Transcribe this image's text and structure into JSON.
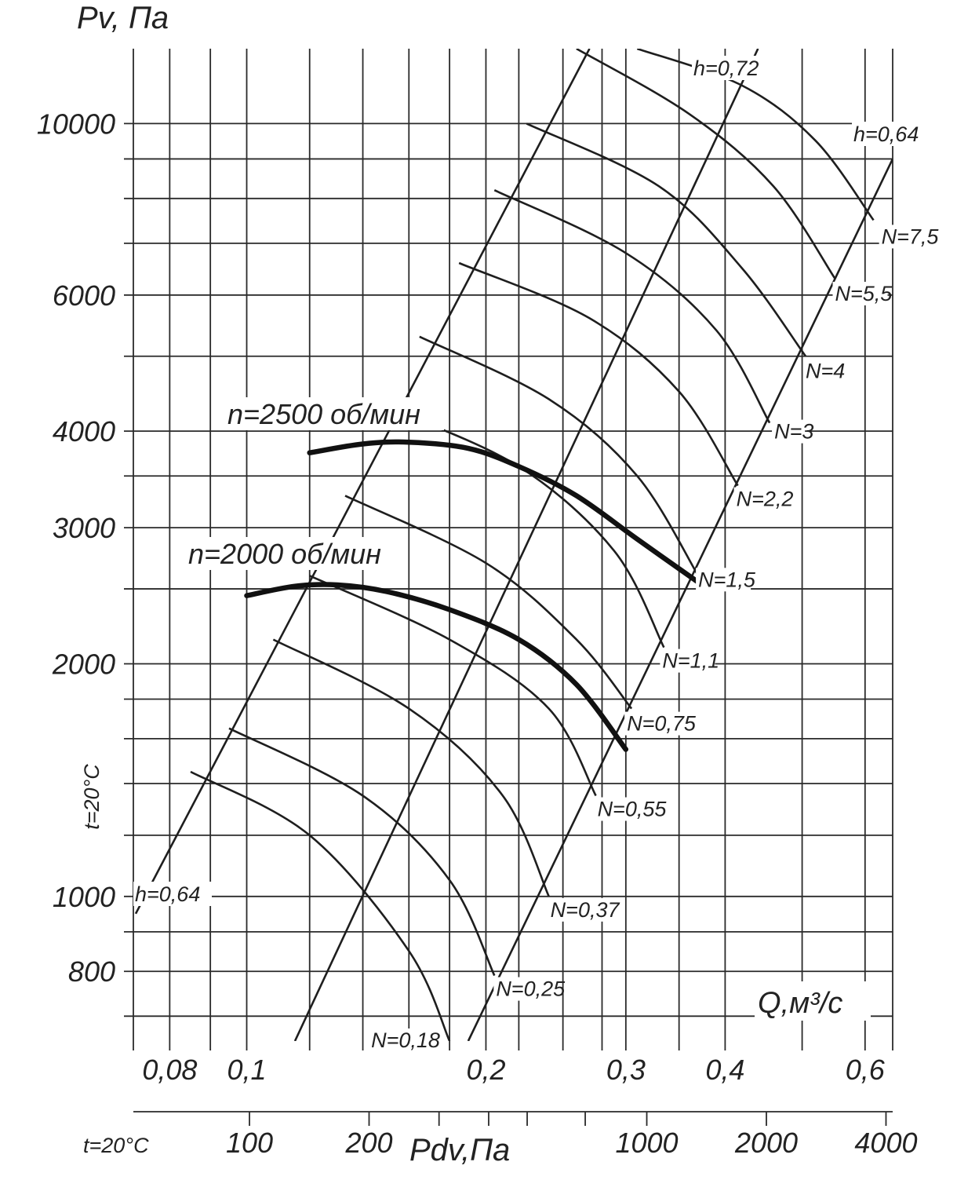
{
  "chart_data": {
    "type": "line",
    "title": "",
    "y_axis": {
      "label": "Pv, Па",
      "scale": "log",
      "range": [
        650,
        12500
      ],
      "tick_labels": [
        {
          "value": 10000,
          "text": "10000"
        },
        {
          "value": 6000,
          "text": "6000"
        },
        {
          "value": 4000,
          "text": "4000"
        },
        {
          "value": 3000,
          "text": "3000"
        },
        {
          "value": 2000,
          "text": "2000"
        },
        {
          "value": 1000,
          "text": "1000"
        },
        {
          "value": 800,
          "text": "800"
        }
      ],
      "gridlines": [
        700,
        800,
        900,
        1000,
        1200,
        1400,
        1600,
        1800,
        2000,
        2500,
        3000,
        3500,
        4000,
        5000,
        6000,
        7000,
        8000,
        9000,
        10000
      ]
    },
    "x_axis": {
      "label": "Q,м³/с",
      "scale": "log",
      "range": [
        0.072,
        0.65
      ],
      "tick_labels": [
        {
          "value": 0.08,
          "text": "0,08"
        },
        {
          "value": 0.1,
          "text": "0,1"
        },
        {
          "value": 0.2,
          "text": "0,2"
        },
        {
          "value": 0.3,
          "text": "0,3"
        },
        {
          "value": 0.4,
          "text": "0,4"
        },
        {
          "value": 0.6,
          "text": "0,6"
        }
      ],
      "gridlines": [
        0.072,
        0.08,
        0.09,
        0.1,
        0.12,
        0.14,
        0.16,
        0.18,
        0.2,
        0.22,
        0.25,
        0.28,
        0.3,
        0.35,
        0.4,
        0.5,
        0.6,
        0.65
      ]
    },
    "secondary_x_axis": {
      "label": "Pdv,Па",
      "side_label": "t=20°C",
      "tick_labels": [
        {
          "value": 100,
          "text": "100"
        },
        {
          "value": 200,
          "text": "200"
        },
        {
          "value": 1000,
          "text": "1000"
        },
        {
          "value": 2000,
          "text": "2000"
        },
        {
          "value": 4000,
          "text": "4000"
        }
      ],
      "extra_ticks": [
        300,
        400,
        500,
        700
      ]
    },
    "y_side_label": "t=20°C",
    "efficiency_lines": [
      {
        "label": "h=0,64",
        "points": [
          [
            0.0725,
            950
          ],
          [
            0.27,
            12500
          ]
        ]
      },
      {
        "label": "h=0,72",
        "points": [
          [
            0.115,
            650
          ],
          [
            0.44,
            12500
          ]
        ]
      },
      {
        "label": "h=0,64",
        "points": [
          [
            0.19,
            650
          ],
          [
            0.65,
            9000
          ]
        ]
      }
    ],
    "power_curves": [
      {
        "label": "N=0,18",
        "points": [
          [
            0.085,
            1450
          ],
          [
            0.12,
            1200
          ],
          [
            0.16,
            850
          ],
          [
            0.18,
            650
          ]
        ]
      },
      {
        "label": "N=0,25",
        "points": [
          [
            0.095,
            1650
          ],
          [
            0.14,
            1350
          ],
          [
            0.18,
            1050
          ],
          [
            0.205,
            790
          ]
        ]
      },
      {
        "label": "N=0,37",
        "points": [
          [
            0.108,
            2150
          ],
          [
            0.16,
            1750
          ],
          [
            0.21,
            1350
          ],
          [
            0.24,
            1000
          ]
        ]
      },
      {
        "label": "N=0,55",
        "points": [
          [
            0.12,
            2600
          ],
          [
            0.18,
            2150
          ],
          [
            0.24,
            1750
          ],
          [
            0.275,
            1350
          ]
        ]
      },
      {
        "label": "N=0,75",
        "points": [
          [
            0.133,
            3300
          ],
          [
            0.2,
            2700
          ],
          [
            0.26,
            2150
          ],
          [
            0.305,
            1750
          ]
        ]
      },
      {
        "label": "N=1,1",
        "points": [
          [
            0.15,
            4300
          ],
          [
            0.22,
            3600
          ],
          [
            0.29,
            2800
          ],
          [
            0.335,
            2100
          ]
        ]
      },
      {
        "label": "N=1,5",
        "points": [
          [
            0.165,
            5300
          ],
          [
            0.24,
            4400
          ],
          [
            0.31,
            3500
          ],
          [
            0.37,
            2600
          ]
        ]
      },
      {
        "label": "N=2,2",
        "points": [
          [
            0.185,
            6600
          ],
          [
            0.27,
            5600
          ],
          [
            0.35,
            4500
          ],
          [
            0.415,
            3400
          ]
        ]
      },
      {
        "label": "N=3",
        "points": [
          [
            0.205,
            8200
          ],
          [
            0.3,
            6800
          ],
          [
            0.39,
            5400
          ],
          [
            0.455,
            4100
          ]
        ]
      },
      {
        "label": "N=4",
        "points": [
          [
            0.225,
            10000
          ],
          [
            0.33,
            8300
          ],
          [
            0.42,
            6500
          ],
          [
            0.505,
            5000
          ]
        ]
      },
      {
        "label": "N=5,5",
        "points": [
          [
            0.26,
            12500
          ],
          [
            0.36,
            10300
          ],
          [
            0.46,
            8300
          ],
          [
            0.55,
            6300
          ]
        ]
      },
      {
        "label": "N=7,5",
        "points": [
          [
            0.31,
            12500
          ],
          [
            0.42,
            11200
          ],
          [
            0.52,
            9500
          ],
          [
            0.615,
            7500
          ]
        ]
      }
    ],
    "speed_curves": [
      {
        "label": "n=2500 об/мин",
        "points": [
          [
            0.12,
            3750
          ],
          [
            0.14,
            3850
          ],
          [
            0.16,
            3870
          ],
          [
            0.19,
            3800
          ],
          [
            0.22,
            3600
          ],
          [
            0.26,
            3300
          ],
          [
            0.31,
            2900
          ],
          [
            0.37,
            2550
          ]
        ]
      },
      {
        "label": "n=2000 об/мин",
        "points": [
          [
            0.1,
            2450
          ],
          [
            0.115,
            2520
          ],
          [
            0.13,
            2530
          ],
          [
            0.15,
            2480
          ],
          [
            0.18,
            2350
          ],
          [
            0.22,
            2150
          ],
          [
            0.26,
            1880
          ],
          [
            0.3,
            1550
          ]
        ]
      }
    ]
  }
}
